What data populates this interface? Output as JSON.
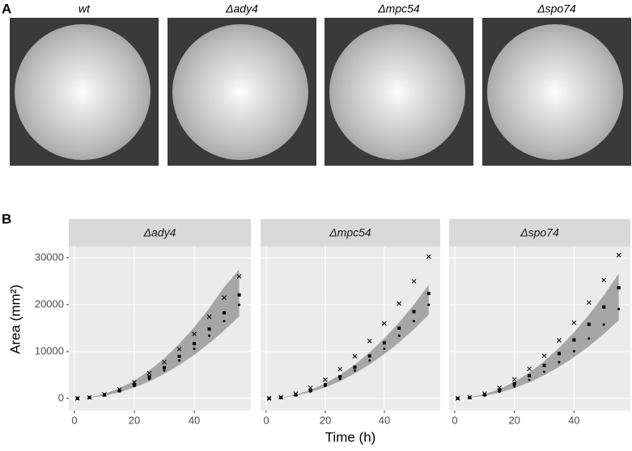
{
  "panel_a": {
    "label": "A",
    "images": [
      "wt",
      "Δady4",
      "Δmpc54",
      "Δspo74"
    ]
  },
  "panel_b": {
    "label": "B",
    "x_label": "Time (h)",
    "y_label": "Area (mm²)"
  },
  "chart_data": [
    {
      "type": "scatter",
      "title": "Δady4",
      "x": [
        1,
        5,
        10,
        15,
        20,
        25,
        30,
        35,
        40,
        45,
        50,
        55
      ],
      "ribbon": {
        "color": "#a6a6a6",
        "upper": [
          10,
          240,
          950,
          2140,
          3800,
          5940,
          8550,
          11640,
          15200,
          19240,
          23750,
          27500
        ],
        "lower": [
          6,
          145,
          580,
          1305,
          2320,
          3625,
          5220,
          7105,
          9280,
          11745,
          14500,
          17500
        ]
      },
      "series": [
        {
          "marker": "cross",
          "color": "#000000",
          "values": [
            9,
            215,
            860,
            1935,
            3440,
            5375,
            7740,
            10535,
            13760,
            17415,
            21500,
            26015
          ]
        },
        {
          "marker": "square",
          "color": "#000000",
          "values": [
            7,
            183,
            730,
            1643,
            2920,
            4563,
            6570,
            8943,
            11680,
            14783,
            18250,
            22083
          ]
        },
        {
          "marker": "dot",
          "color": "#000000",
          "values": [
            7,
            165,
            660,
            1485,
            2640,
            4125,
            5940,
            8085,
            10560,
            13365,
            16500,
            19965
          ]
        }
      ],
      "xlim": [
        -1.9,
        58.9
      ],
      "ylim": [
        -2600,
        32400
      ],
      "xticks": [
        0,
        20,
        40
      ],
      "yticks": [
        0,
        10000,
        20000,
        30000
      ],
      "grid": true
    },
    {
      "type": "scatter",
      "title": "Δmpc54",
      "x": [
        1,
        5,
        10,
        15,
        20,
        25,
        30,
        35,
        40,
        45,
        50,
        55
      ],
      "ribbon": {
        "color": "#a6a6a6",
        "upper": [
          8,
          200,
          800,
          1800,
          3200,
          5000,
          7200,
          9800,
          12800,
          16200,
          20000,
          24200
        ],
        "lower": [
          6,
          148,
          590,
          1328,
          2360,
          3688,
          5310,
          7228,
          9440,
          11948,
          14750,
          17848
        ]
      },
      "series": [
        {
          "marker": "cross",
          "color": "#000000",
          "values": [
            10,
            250,
            1000,
            2250,
            4000,
            6250,
            9000,
            12250,
            16000,
            20250,
            25000,
            30250
          ]
        },
        {
          "marker": "square",
          "color": "#000000",
          "values": [
            7,
            185,
            740,
            1665,
            2960,
            4625,
            6660,
            9065,
            11840,
            14985,
            18500,
            22385
          ]
        },
        {
          "marker": "dot",
          "color": "#000000",
          "values": [
            7,
            165,
            660,
            1485,
            2640,
            4125,
            5940,
            8085,
            10560,
            13365,
            16500,
            19965
          ]
        }
      ],
      "xlim": [
        -1.9,
        58.9
      ],
      "ylim": [
        -2600,
        32400
      ],
      "xticks": [
        0,
        20,
        40
      ],
      "yticks": [
        0,
        10000,
        20000,
        30000
      ],
      "grid": true
    },
    {
      "type": "scatter",
      "title": "Δspo74",
      "x": [
        1,
        5,
        10,
        15,
        20,
        25,
        30,
        35,
        40,
        45,
        50,
        55
      ],
      "ribbon": {
        "color": "#a6a6a6",
        "upper": [
          9,
          220,
          880,
          1980,
          3520,
          5500,
          7920,
          10780,
          14080,
          17820,
          22000,
          26620
        ],
        "lower": [
          6,
          138,
          550,
          1238,
          2200,
          3438,
          4950,
          6738,
          8800,
          11138,
          13750,
          16638
        ]
      },
      "series": [
        {
          "marker": "cross",
          "color": "#000000",
          "values": [
            10,
            253,
            1010,
            2273,
            4040,
            6313,
            9090,
            12373,
            16160,
            20453,
            25250,
            30553
          ]
        },
        {
          "marker": "square",
          "color": "#000000",
          "values": [
            8,
            195,
            780,
            1755,
            3120,
            4875,
            7020,
            9555,
            12480,
            15795,
            19500,
            23595
          ]
        },
        {
          "marker": "dot",
          "color": "#000000",
          "values": [
            6,
            158,
            630,
            1418,
            2520,
            3938,
            5670,
            7718,
            10080,
            12758,
            15750,
            19058
          ]
        }
      ],
      "xlim": [
        -1.9,
        58.9
      ],
      "ylim": [
        -2600,
        32400
      ],
      "xticks": [
        0,
        20,
        40
      ],
      "yticks": [
        0,
        10000,
        20000,
        30000
      ],
      "grid": true
    }
  ]
}
